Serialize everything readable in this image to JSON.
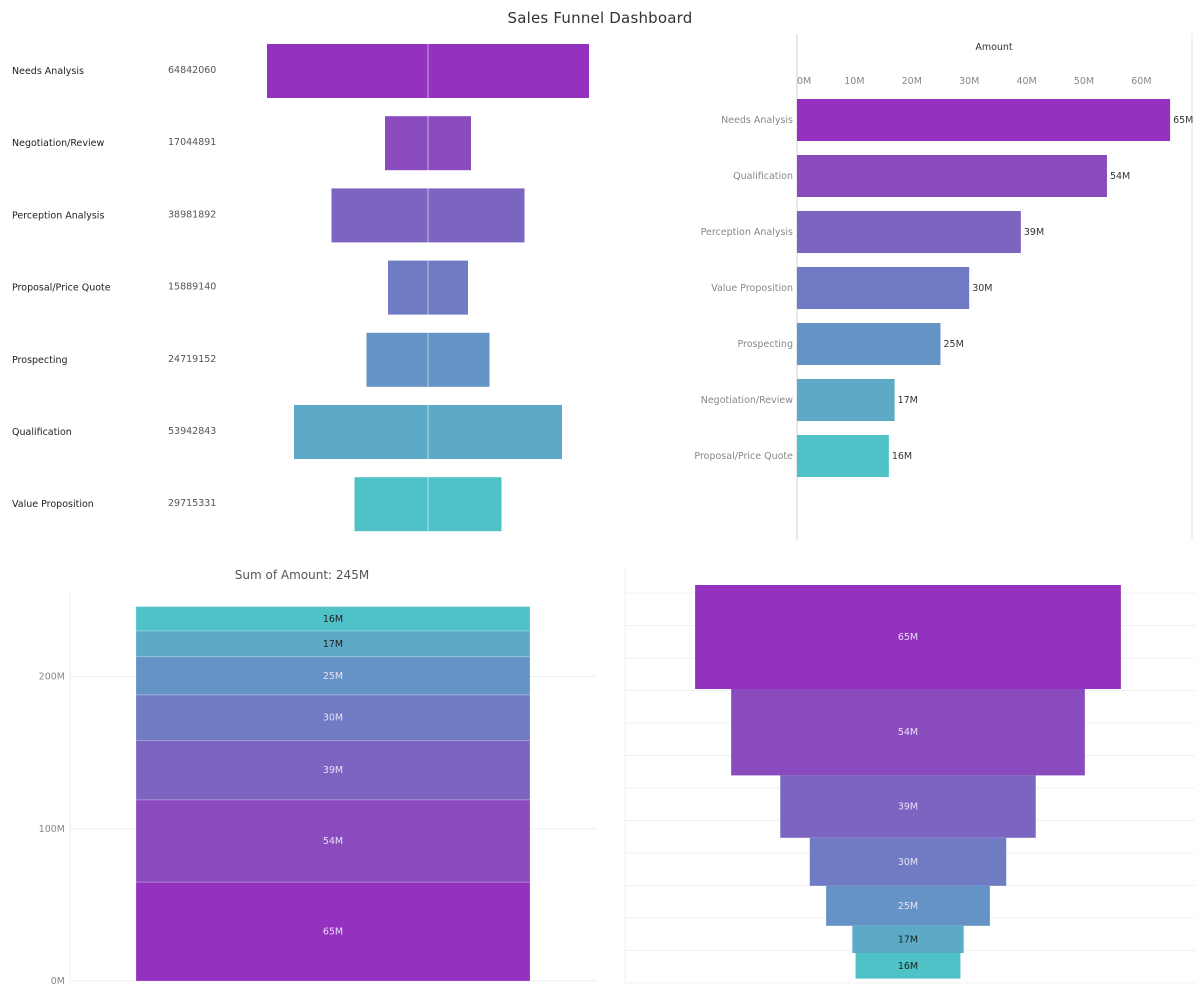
{
  "dashboard": {
    "title": "Sales Funnel Dashboard"
  },
  "chart_data": [
    {
      "id": "funnel-table",
      "type": "bar",
      "variant": "centered-funnel",
      "categories": [
        "Needs Analysis",
        "Negotiation/Review",
        "Perception Analysis",
        "Proposal/Price Quote",
        "Prospecting",
        "Qualification",
        "Value Proposition"
      ],
      "values": [
        64842060,
        17044891,
        38981892,
        15889140,
        24719152,
        53942843,
        29715331
      ],
      "value_labels": [
        "64842060",
        "17044891",
        "38981892",
        "15889140",
        "24719152",
        "53942843",
        "29715331"
      ],
      "colors": [
        "#9431bf",
        "#8a4bbf",
        "#7c65c0",
        "#6f7bc3",
        "#6593c5",
        "#5caac5",
        "#4fc2c8"
      ]
    },
    {
      "id": "horizontal-bar",
      "type": "bar",
      "orientation": "horizontal",
      "xlabel": "Amount",
      "ticks": [
        "0M",
        "10M",
        "20M",
        "30M",
        "40M",
        "50M",
        "60M"
      ],
      "xlim": [
        0,
        65
      ],
      "categories": [
        "Needs Analysis",
        "Qualification",
        "Perception Analysis",
        "Value Proposition",
        "Prospecting",
        "Negotiation/Review",
        "Proposal/Price Quote"
      ],
      "values": [
        65,
        54,
        39,
        30,
        25,
        17,
        16
      ],
      "value_labels": [
        "65M",
        "54M",
        "39M",
        "30M",
        "25M",
        "17M",
        "16M"
      ],
      "colors": [
        "#9431bf",
        "#8a4bbf",
        "#7c65c0",
        "#6f7bc3",
        "#6593c5",
        "#5caac5",
        "#4fc2c8"
      ]
    },
    {
      "id": "stacked-bar",
      "type": "bar",
      "variant": "stacked",
      "title": "Sum of Amount: 245M",
      "ticks": [
        "0M",
        "100M",
        "200M"
      ],
      "ylim": [
        0,
        245
      ],
      "segments": [
        "65M",
        "54M",
        "39M",
        "30M",
        "25M",
        "17M",
        "16M"
      ],
      "values": [
        65,
        54,
        39,
        30,
        25,
        17,
        16
      ],
      "colors": [
        "#9431bf",
        "#8a4bbf",
        "#7c65c0",
        "#6f7bc3",
        "#6593c5",
        "#5caac5",
        "#4fc2c8"
      ]
    },
    {
      "id": "funnel-chart",
      "type": "bar",
      "variant": "funnel",
      "values": [
        65,
        54,
        39,
        30,
        25,
        17,
        16
      ],
      "value_labels": [
        "65M",
        "54M",
        "39M",
        "30M",
        "25M",
        "17M",
        "16M"
      ],
      "colors": [
        "#9431bf",
        "#8a4bbf",
        "#7c65c0",
        "#6f7bc3",
        "#6593c5",
        "#5caac5",
        "#4fc2c8"
      ]
    }
  ]
}
